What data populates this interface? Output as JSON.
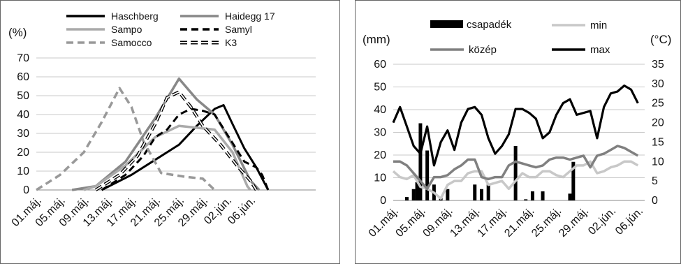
{
  "chart_data": [
    {
      "type": "line",
      "ylabel": "(%)",
      "ylim": [
        0,
        70
      ],
      "y_ticks": [
        "0",
        "10",
        "20",
        "30",
        "40",
        "50",
        "60",
        "70"
      ],
      "xlim": [
        0,
        47
      ],
      "x_ticks": [
        {
          "label": "01.máj.",
          "x": 0
        },
        {
          "label": "05.máj.",
          "x": 4
        },
        {
          "label": "09.máj.",
          "x": 8
        },
        {
          "label": "13.máj.",
          "x": 12
        },
        {
          "label": "17.máj.",
          "x": 16
        },
        {
          "label": "21.máj.",
          "x": 20
        },
        {
          "label": "25.máj.",
          "x": 24
        },
        {
          "label": "29.máj.",
          "x": 28
        },
        {
          "label": "02.jún.",
          "x": 32
        },
        {
          "label": "06.jún.",
          "x": 36
        }
      ],
      "legend_position": "top",
      "series": [
        {
          "name": "Haschberg",
          "color": "#000000",
          "dash": "solid",
          "points": [
            [
              11,
              0
            ],
            [
              16,
              8
            ],
            [
              20,
              16
            ],
            [
              24,
              24
            ],
            [
              27,
              34
            ],
            [
              30,
              43
            ],
            [
              31.5,
              45
            ],
            [
              33,
              35
            ],
            [
              35,
              22
            ],
            [
              37,
              12
            ],
            [
              39,
              0
            ]
          ]
        },
        {
          "name": "Haidegg 17",
          "color": "#888888",
          "dash": "solid",
          "points": [
            [
              6,
              0
            ],
            [
              10,
              2
            ],
            [
              15,
              15
            ],
            [
              20,
              38
            ],
            [
              24,
              59
            ],
            [
              27,
              48
            ],
            [
              30,
              40
            ],
            [
              33,
              24
            ],
            [
              36,
              5
            ],
            [
              37.5,
              0
            ]
          ]
        },
        {
          "name": "Sampo",
          "color": "#aaaaaa",
          "dash": "solid",
          "points": [
            [
              8,
              0
            ],
            [
              10,
              2
            ],
            [
              15,
              13
            ],
            [
              20,
              28
            ],
            [
              24,
              34
            ],
            [
              27,
              33
            ],
            [
              30,
              32
            ],
            [
              33,
              20
            ],
            [
              35.5,
              2
            ],
            [
              36,
              0
            ]
          ]
        },
        {
          "name": "Samyl",
          "color": "#000000",
          "dash": "dash",
          "points": [
            [
              11,
              0
            ],
            [
              15,
              8
            ],
            [
              18,
              18
            ],
            [
              20,
              28
            ],
            [
              22,
              32
            ],
            [
              24,
              40
            ],
            [
              26,
              43
            ],
            [
              28,
              42
            ],
            [
              30,
              40
            ],
            [
              32,
              30
            ],
            [
              35,
              15
            ],
            [
              37,
              12
            ],
            [
              38,
              8
            ],
            [
              39,
              0
            ]
          ]
        },
        {
          "name": "Samocco",
          "color": "#999999",
          "dash": "dash",
          "points": [
            [
              0,
              0
            ],
            [
              4,
              8
            ],
            [
              8,
              20
            ],
            [
              11,
              36
            ],
            [
              14,
              54
            ],
            [
              16,
              44
            ],
            [
              18,
              26
            ],
            [
              21,
              9
            ],
            [
              25,
              7
            ],
            [
              28,
              6
            ],
            [
              30,
              0
            ]
          ]
        },
        {
          "name": "K3",
          "color": "#000000",
          "dash": "double",
          "points": [
            [
              10,
              0
            ],
            [
              14,
              8
            ],
            [
              17,
              18
            ],
            [
              20,
              35
            ],
            [
              22,
              49
            ],
            [
              24,
              52
            ],
            [
              26,
              44
            ],
            [
              28,
              34
            ],
            [
              31,
              24
            ],
            [
              34,
              12
            ],
            [
              36,
              5
            ],
            [
              37,
              0
            ]
          ]
        }
      ]
    },
    {
      "type": "bar+line",
      "ylabel": "(mm)",
      "ylabel_right": "(°C)",
      "ylim": [
        0,
        60
      ],
      "ylim_right": [
        0,
        35
      ],
      "y_ticks": [
        "0",
        "10",
        "20",
        "30",
        "40",
        "50",
        "60"
      ],
      "y_ticks_right": [
        "0",
        "5",
        "10",
        "15",
        "20",
        "25",
        "30",
        "35"
      ],
      "xlim": [
        0,
        37
      ],
      "x_ticks": [
        {
          "label": "01.máj.",
          "x": 0
        },
        {
          "label": "05.máj.",
          "x": 4
        },
        {
          "label": "09.máj.",
          "x": 8
        },
        {
          "label": "13.máj.",
          "x": 12
        },
        {
          "label": "17.máj.",
          "x": 16
        },
        {
          "label": "21.máj.",
          "x": 20
        },
        {
          "label": "25.máj.",
          "x": 24
        },
        {
          "label": "29.máj.",
          "x": 28
        },
        {
          "label": "02.jún.",
          "x": 32
        },
        {
          "label": "06.jún.",
          "x": 36
        }
      ],
      "legend_position": "top",
      "bars": {
        "name": "csapadék",
        "color": "#000000",
        "points": [
          [
            2,
            1.5
          ],
          [
            3,
            5
          ],
          [
            3.5,
            8
          ],
          [
            4,
            34
          ],
          [
            5,
            22
          ],
          [
            6,
            7
          ],
          [
            7,
            1
          ],
          [
            8,
            5
          ],
          [
            12,
            7
          ],
          [
            13,
            5
          ],
          [
            14,
            7
          ],
          [
            18,
            24
          ],
          [
            19.5,
            0.5
          ],
          [
            20.5,
            4
          ],
          [
            22,
            4
          ],
          [
            26,
            3
          ],
          [
            26.5,
            17
          ]
        ]
      },
      "series": [
        {
          "name": "min",
          "color": "#c8c8c8",
          "axis": "right",
          "values": [
            7.5,
            6,
            5.5,
            6.5,
            3.5,
            3,
            2,
            0.5,
            4,
            5,
            5,
            7,
            7.5,
            7.5,
            4,
            4.5,
            5,
            3,
            5,
            7,
            6,
            6,
            7.5,
            7.5,
            6.5,
            6,
            7.5,
            9,
            9,
            10,
            7,
            7.5,
            8.5,
            9,
            10,
            10,
            9
          ]
        },
        {
          "name": "közép",
          "color": "#808080",
          "axis": "right",
          "values": [
            10,
            10,
            9,
            7,
            5,
            3,
            6,
            6,
            6.5,
            8,
            9,
            10.5,
            10.5,
            6,
            5.5,
            6,
            6,
            9,
            10,
            9.5,
            9,
            8.5,
            9,
            10.5,
            11,
            11,
            10.5,
            11,
            11.5,
            8.5,
            11.5,
            12,
            13,
            14,
            13.5,
            12.5,
            11.5
          ]
        },
        {
          "name": "max",
          "color": "#000000",
          "axis": "right",
          "values": [
            20,
            24,
            19,
            14,
            12,
            19,
            9,
            15,
            18,
            13,
            20,
            23.5,
            24,
            22,
            16,
            12,
            14,
            17,
            23.5,
            23.5,
            22.5,
            21,
            16,
            17.5,
            22,
            25,
            26,
            22,
            22.5,
            23,
            16,
            24,
            27.5,
            28,
            29.5,
            28.5,
            25
          ]
        }
      ]
    }
  ]
}
